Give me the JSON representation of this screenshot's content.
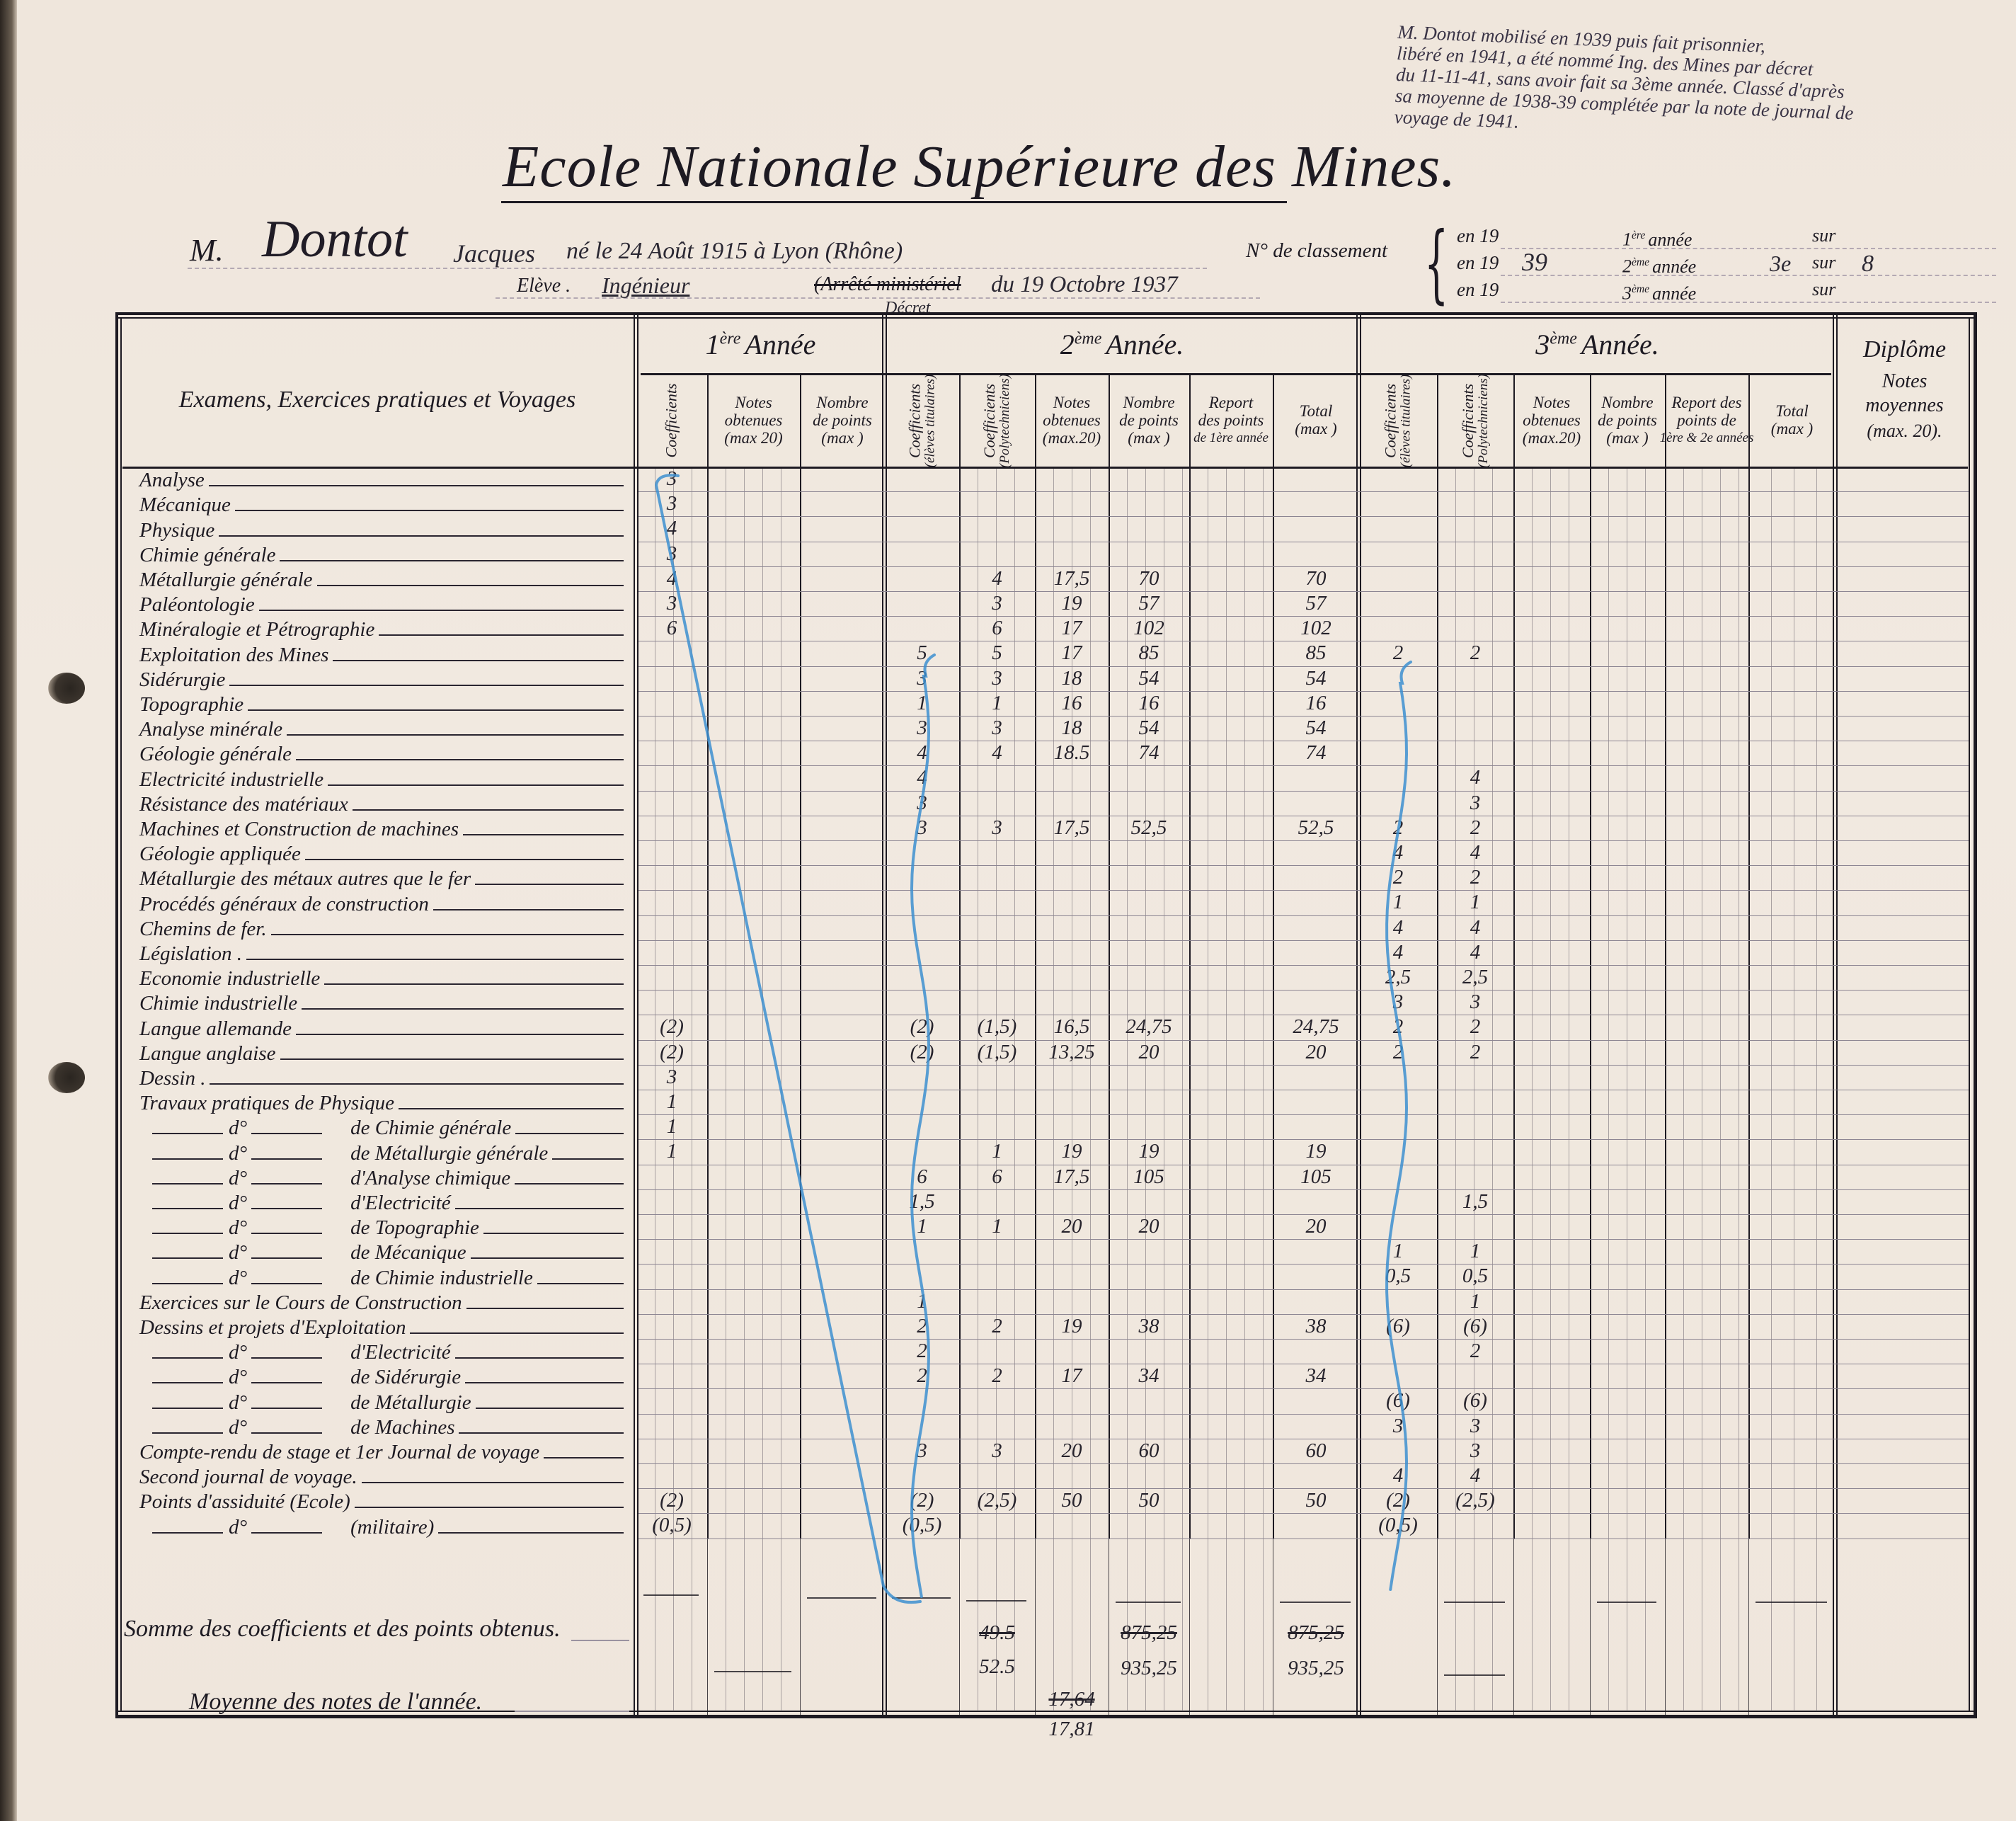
{
  "annotation": [
    "M. Dontot mobilisé en 1939 puis fait prisonnier,",
    "libéré en 1941, a été nommé Ing. des Mines par décret",
    "du 11-11-41, sans avoir fait sa 3ème année. Classé d'après",
    "sa moyenne de 1938-39 complétée par la note de journal de",
    "voyage de 1941."
  ],
  "title": "Ecole Nationale Supérieure des Mines.",
  "student": {
    "prefix": "M.",
    "surname": "Dontot",
    "firstname": "Jacques",
    "birth": "né le 24 Août 1915 à Lyon (Rhône)",
    "status_label": "Elève .",
    "status": "Ingénieur",
    "decree_struck": "(Arrêté ministériel",
    "decree_correction": "Décret",
    "decree_date": "du 19 Octobre 1937"
  },
  "ranking": {
    "label": "N° de classement",
    "lines": [
      {
        "en": "en 19",
        "year": "",
        "num": "1",
        "sup": "ère",
        "annee": "année",
        "rank": "",
        "sur": "sur",
        "total": ""
      },
      {
        "en": "en 19",
        "year": "39",
        "num": "2",
        "sup": "ème",
        "annee": "année",
        "rank": "3e",
        "sur": "sur",
        "total": "8"
      },
      {
        "en": "en 19",
        "year": "",
        "num": "3",
        "sup": "ème",
        "annee": "année",
        "rank": "",
        "sur": "sur",
        "total": ""
      }
    ]
  },
  "table": {
    "label_header": "Examens, Exercices pratiques et Voyages",
    "years": [
      {
        "num": "1",
        "sup": "ère",
        "word": "Année"
      },
      {
        "num": "2",
        "sup": "ème",
        "word": "Année."
      },
      {
        "num": "3",
        "sup": "ème",
        "word": "Année."
      }
    ],
    "diplome": {
      "title": "Diplôme",
      "sub1": "Notes",
      "sub2": "moyennes",
      "sub3": "(max. 20)."
    },
    "columns": [
      {
        "l1": "Coefficients",
        "vertical": true
      },
      {
        "l1": "Notes",
        "l2": "obtenues",
        "l3": "(max 20)"
      },
      {
        "l1": "Nombre",
        "l2": "de points",
        "l3": "(max      )"
      },
      {
        "l1": "Coefficients",
        "l2": "(élèves titulaires)",
        "vertical": true
      },
      {
        "l1": "Coefficients",
        "l2": "(Polytechniciens)",
        "vertical": true
      },
      {
        "l1": "Notes",
        "l2": "obtenues",
        "l3": "(max.20)"
      },
      {
        "l1": "Nombre",
        "l2": "de points",
        "l3": "(max      )"
      },
      {
        "l1": "Report",
        "l2": "des points",
        "l3": "de 1ère année"
      },
      {
        "l1": "Total",
        "l2": "",
        "l3": "(max      )"
      },
      {
        "l1": "Coefficients",
        "l2": "(élèves titulaires)",
        "vertical": true
      },
      {
        "l1": "Coefficients",
        "l2": "(Polytechniciens)",
        "vertical": true
      },
      {
        "l1": "Notes",
        "l2": "obtenues",
        "l3": "(max.20)"
      },
      {
        "l1": "Nombre",
        "l2": "de points",
        "l3": "(max      )"
      },
      {
        "l1": "Report des",
        "l2": "points de",
        "l3": "1ère & 2e années"
      },
      {
        "l1": "Total",
        "l2": "",
        "l3": "(max      )"
      }
    ],
    "rows": [
      {
        "label": "Analyse",
        "cells": [
          "3",
          "",
          "",
          "",
          "",
          "",
          "",
          "",
          "",
          "",
          "",
          "",
          "",
          "",
          "",
          ""
        ]
      },
      {
        "label": "Mécanique",
        "cells": [
          "3",
          "",
          "",
          "",
          "",
          "",
          "",
          "",
          "",
          "",
          "",
          "",
          "",
          "",
          "",
          ""
        ]
      },
      {
        "label": "Physique",
        "cells": [
          "4",
          "",
          "",
          "",
          "",
          "",
          "",
          "",
          "",
          "",
          "",
          "",
          "",
          "",
          "",
          ""
        ]
      },
      {
        "label": "Chimie générale",
        "cells": [
          "3",
          "",
          "",
          "",
          "",
          "",
          "",
          "",
          "",
          "",
          "",
          "",
          "",
          "",
          "",
          ""
        ]
      },
      {
        "label": "Métallurgie générale",
        "cells": [
          "4",
          "",
          "",
          "",
          "4",
          "17,5",
          "70",
          "",
          "70",
          "",
          "",
          "",
          "",
          "",
          "",
          ""
        ]
      },
      {
        "label": "Paléontologie",
        "cells": [
          "3",
          "",
          "",
          "",
          "3",
          "19",
          "57",
          "",
          "57",
          "",
          "",
          "",
          "",
          "",
          "",
          ""
        ]
      },
      {
        "label": "Minéralogie et Pétrographie",
        "cells": [
          "6",
          "",
          "",
          "",
          "6",
          "17",
          "102",
          "",
          "102",
          "",
          "",
          "",
          "",
          "",
          "",
          ""
        ]
      },
      {
        "label": "Exploitation des Mines",
        "cells": [
          "",
          "",
          "",
          "5",
          "5",
          "17",
          "85",
          "",
          "85",
          "2",
          "2",
          "",
          "",
          "",
          "",
          ""
        ]
      },
      {
        "label": "Sidérurgie",
        "cells": [
          "",
          "",
          "",
          "3",
          "3",
          "18",
          "54",
          "",
          "54",
          "",
          "",
          "",
          "",
          "",
          "",
          ""
        ]
      },
      {
        "label": "Topographie",
        "cells": [
          "",
          "",
          "",
          "1",
          "1",
          "16",
          "16",
          "",
          "16",
          "",
          "",
          "",
          "",
          "",
          "",
          ""
        ]
      },
      {
        "label": "Analyse minérale",
        "cells": [
          "",
          "",
          "",
          "3",
          "3",
          "18",
          "54",
          "",
          "54",
          "",
          "",
          "",
          "",
          "",
          "",
          ""
        ]
      },
      {
        "label": "Géologie générale",
        "cells": [
          "",
          "",
          "",
          "4",
          "4",
          "18.5",
          "74",
          "",
          "74",
          "",
          "",
          "",
          "",
          "",
          "",
          ""
        ]
      },
      {
        "label": "Electricité industrielle",
        "cells": [
          "",
          "",
          "",
          "4",
          "",
          "",
          "",
          "",
          "",
          "",
          "4",
          "",
          "",
          "",
          "",
          ""
        ]
      },
      {
        "label": "Résistance des matériaux",
        "cells": [
          "",
          "",
          "",
          "3",
          "",
          "",
          "",
          "",
          "",
          "",
          "3",
          "",
          "",
          "",
          "",
          ""
        ]
      },
      {
        "label": "Machines et Construction de machines",
        "cells": [
          "",
          "",
          "",
          "3",
          "3",
          "17,5",
          "52,5",
          "",
          "52,5",
          "2",
          "2",
          "",
          "",
          "",
          "",
          ""
        ]
      },
      {
        "label": "Géologie appliquée",
        "cells": [
          "",
          "",
          "",
          "",
          "",
          "",
          "",
          "",
          "",
          "4",
          "4",
          "",
          "",
          "",
          "",
          ""
        ]
      },
      {
        "label": "Métallurgie des métaux autres que le fer",
        "cells": [
          "",
          "",
          "",
          "",
          "",
          "",
          "",
          "",
          "",
          "2",
          "2",
          "",
          "",
          "",
          "",
          ""
        ]
      },
      {
        "label": "Procédés généraux de construction",
        "cells": [
          "",
          "",
          "",
          "",
          "",
          "",
          "",
          "",
          "",
          "1",
          "1",
          "",
          "",
          "",
          "",
          ""
        ]
      },
      {
        "label": "Chemins de fer.",
        "cells": [
          "",
          "",
          "",
          "",
          "",
          "",
          "",
          "",
          "",
          "4",
          "4",
          "",
          "",
          "",
          "",
          ""
        ]
      },
      {
        "label": "Législation .",
        "cells": [
          "",
          "",
          "",
          "",
          "",
          "",
          "",
          "",
          "",
          "4",
          "4",
          "",
          "",
          "",
          "",
          ""
        ]
      },
      {
        "label": "Economie industrielle",
        "cells": [
          "",
          "",
          "",
          "",
          "",
          "",
          "",
          "",
          "",
          "2,5",
          "2,5",
          "",
          "",
          "",
          "",
          ""
        ]
      },
      {
        "label": "Chimie industrielle",
        "cells": [
          "",
          "",
          "",
          "",
          "",
          "",
          "",
          "",
          "",
          "3",
          "3",
          "",
          "",
          "",
          "",
          ""
        ]
      },
      {
        "label": "Langue allemande",
        "cells": [
          "(2)",
          "",
          "",
          "(2)",
          "(1,5)",
          "16,5",
          "24,75",
          "",
          "24,75",
          "2",
          "2",
          "",
          "",
          "",
          "",
          ""
        ]
      },
      {
        "label": "Langue anglaise",
        "cells": [
          "(2)",
          "",
          "",
          "(2)",
          "(1,5)",
          "13,25",
          "20",
          "",
          "20",
          "2",
          "2",
          "",
          "",
          "",
          "",
          ""
        ]
      },
      {
        "label": "Dessin .",
        "cells": [
          "3",
          "",
          "",
          "",
          "",
          "",
          "",
          "",
          "",
          "",
          "",
          "",
          "",
          "",
          "",
          ""
        ]
      },
      {
        "label": "Travaux pratiques de Physique",
        "cells": [
          "1",
          "",
          "",
          "",
          "",
          "",
          "",
          "",
          "",
          "",
          "",
          "",
          "",
          "",
          "",
          ""
        ]
      },
      {
        "prefix": "d°",
        "label": "de Chimie générale",
        "cells": [
          "1",
          "",
          "",
          "",
          "",
          "",
          "",
          "",
          "",
          "",
          "",
          "",
          "",
          "",
          "",
          ""
        ]
      },
      {
        "prefix": "d°",
        "label": "de Métallurgie générale",
        "cells": [
          "1",
          "",
          "",
          "",
          "1",
          "19",
          "19",
          "",
          "19",
          "",
          "",
          "",
          "",
          "",
          "",
          ""
        ]
      },
      {
        "prefix": "d°",
        "label": "d'Analyse chimique",
        "cells": [
          "",
          "",
          "",
          "6",
          "6",
          "17,5",
          "105",
          "",
          "105",
          "",
          "",
          "",
          "",
          "",
          "",
          ""
        ]
      },
      {
        "prefix": "d°",
        "label": "d'Electricité",
        "cells": [
          "",
          "",
          "",
          "1,5",
          "",
          "",
          "",
          "",
          "",
          "",
          "1,5",
          "",
          "",
          "",
          "",
          ""
        ]
      },
      {
        "prefix": "d°",
        "label": "de Topographie",
        "cells": [
          "",
          "",
          "",
          "1",
          "1",
          "20",
          "20",
          "",
          "20",
          "",
          "",
          "",
          "",
          "",
          "",
          ""
        ]
      },
      {
        "prefix": "d°",
        "label": "de Mécanique",
        "cells": [
          "",
          "",
          "",
          "",
          "",
          "",
          "",
          "",
          "",
          "1",
          "1",
          "",
          "",
          "",
          "",
          ""
        ]
      },
      {
        "prefix": "d°",
        "label": "de Chimie industrielle",
        "cells": [
          "",
          "",
          "",
          "",
          "",
          "",
          "",
          "",
          "",
          "0,5",
          "0,5",
          "",
          "",
          "",
          "",
          ""
        ]
      },
      {
        "label": "Exercices sur le Cours de Construction",
        "cells": [
          "",
          "",
          "",
          "1",
          "",
          "",
          "",
          "",
          "",
          "",
          "1",
          "",
          "",
          "",
          "",
          ""
        ]
      },
      {
        "label": "Dessins et projets d'Exploitation",
        "cells": [
          "",
          "",
          "",
          "2",
          "2",
          "19",
          "38",
          "",
          "38",
          "(6)",
          "(6)",
          "",
          "",
          "",
          "",
          ""
        ]
      },
      {
        "prefix": "d°",
        "label": "d'Electricité",
        "cells": [
          "",
          "",
          "",
          "2",
          "",
          "",
          "",
          "",
          "",
          "",
          "2",
          "",
          "",
          "",
          "",
          ""
        ]
      },
      {
        "prefix": "d°",
        "label": "de Sidérurgie",
        "cells": [
          "",
          "",
          "",
          "2",
          "2",
          "17",
          "34",
          "",
          "34",
          "",
          "",
          "",
          "",
          "",
          "",
          ""
        ]
      },
      {
        "prefix": "d°",
        "label": "de Métallurgie",
        "cells": [
          "",
          "",
          "",
          "",
          "",
          "",
          "",
          "",
          "",
          "(6)",
          "(6)",
          "",
          "",
          "",
          "",
          ""
        ]
      },
      {
        "prefix": "d°",
        "label": "de Machines",
        "cells": [
          "",
          "",
          "",
          "",
          "",
          "",
          "",
          "",
          "",
          "3",
          "3",
          "",
          "",
          "",
          "",
          ""
        ]
      },
      {
        "label": "Compte-rendu de stage et 1er Journal de voyage",
        "cells": [
          "",
          "",
          "",
          "3",
          "3",
          "20",
          "60",
          "",
          "60",
          "",
          "3",
          "",
          "",
          "",
          "",
          ""
        ]
      },
      {
        "label": "Second journal de voyage.",
        "cells": [
          "",
          "",
          "",
          "",
          "",
          "",
          "",
          "",
          "",
          "4",
          "4",
          "",
          "",
          "",
          "",
          ""
        ]
      },
      {
        "label": "Points d'assiduité   (Ecole)",
        "cells": [
          "(2)",
          "",
          "",
          "(2)",
          "(2,5)",
          "50",
          "50",
          "",
          "50",
          "(2)",
          "(2,5)",
          "",
          "",
          "",
          "",
          ""
        ]
      },
      {
        "prefix": "d°",
        "label": "(militaire)",
        "cells": [
          "(0,5)",
          "",
          "",
          "(0,5)",
          "",
          "",
          "",
          "",
          "",
          "(0,5)",
          "",
          "",
          "",
          "",
          "",
          ""
        ]
      }
    ],
    "summary": {
      "somme_label": "Somme des coefficients et des points obtenus.",
      "moyenne_label": "Moyenne des notes de l'année.",
      "y2_coef_struck": "49.5",
      "y2_coef": "52.5",
      "y2_points_struck": "875,25",
      "y2_points": "935,25",
      "y2_total_struck": "875,25",
      "y2_total": "935,25",
      "y2_moyenne_struck": "17,64",
      "y2_moyenne": "17,81"
    }
  },
  "colors": {
    "paper": "#efe6dc",
    "ink": "#1d1a22",
    "blue_pencil": "#3d8fd0"
  }
}
